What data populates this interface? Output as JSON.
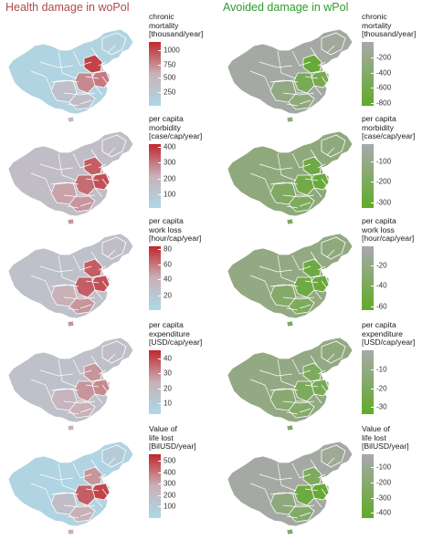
{
  "titles": {
    "left": "Health damage in woPol",
    "right": "Avoided damage in wPol"
  },
  "colors": {
    "damage_low": "#add8e6",
    "damage_mid": "#c9b1b8",
    "damage_high": "#c1272d",
    "avoided_base": "#a9a9a9",
    "avoided_high": "#5faa2a",
    "border": "#ffffff"
  },
  "rows": [
    {
      "left": {
        "legend_title": [
          "chronic",
          "mortality",
          "[thousand/year]"
        ],
        "ticks": [
          "1000",
          "750",
          "500",
          "250"
        ],
        "tick_fracs": [
          0.13,
          0.35,
          0.56,
          0.78
        ]
      },
      "right": {
        "legend_title": [
          "chronic",
          "mortality",
          "[thousand/year]"
        ],
        "ticks": [
          "-200",
          "-400",
          "-600",
          "-800"
        ],
        "tick_fracs": [
          0.24,
          0.48,
          0.72,
          0.96
        ]
      }
    },
    {
      "left": {
        "legend_title": [
          "per capita",
          "morbidity",
          "[case/cap/year]"
        ],
        "ticks": [
          "400",
          "300",
          "200",
          "100"
        ],
        "tick_fracs": [
          0.04,
          0.29,
          0.54,
          0.79
        ]
      },
      "right": {
        "legend_title": [
          "per capita",
          "morbidity",
          "[case/cap/year]"
        ],
        "ticks": [
          "-100",
          "-200",
          "-300"
        ],
        "tick_fracs": [
          0.27,
          0.59,
          0.91
        ]
      }
    },
    {
      "left": {
        "legend_title": [
          "per capita",
          "work loss",
          "[hour/cap/year]"
        ],
        "ticks": [
          "80",
          "60",
          "40",
          "20"
        ],
        "tick_fracs": [
          0.04,
          0.28,
          0.52,
          0.77
        ]
      },
      "right": {
        "legend_title": [
          "per capita",
          "work loss",
          "[hour/cap/year]"
        ],
        "ticks": [
          "-20",
          "-40",
          "-60"
        ],
        "tick_fracs": [
          0.3,
          0.62,
          0.94
        ]
      }
    },
    {
      "left": {
        "legend_title": [
          "per capita",
          "expenditure",
          "[USD/cap/year]"
        ],
        "ticks": [
          "40",
          "30",
          "20",
          "10"
        ],
        "tick_fracs": [
          0.13,
          0.36,
          0.6,
          0.83
        ]
      },
      "right": {
        "legend_title": [
          "per capita",
          "expenditure",
          "[USD/cap/year]"
        ],
        "ticks": [
          "-10",
          "-20",
          "-30"
        ],
        "tick_fracs": [
          0.3,
          0.6,
          0.89
        ]
      }
    },
    {
      "left": {
        "legend_title": [
          "Value of",
          "life lost",
          "[BilUSD/year]"
        ],
        "ticks": [
          "500",
          "400",
          "300",
          "200",
          "100"
        ],
        "tick_fracs": [
          0.1,
          0.28,
          0.46,
          0.64,
          0.82
        ]
      },
      "right": {
        "legend_title": [
          "Value of",
          "life lost",
          "[BilUSD/year]"
        ],
        "ticks": [
          "-100",
          "-200",
          "-300",
          "-400"
        ],
        "tick_fracs": [
          0.2,
          0.44,
          0.68,
          0.92
        ]
      }
    }
  ]
}
